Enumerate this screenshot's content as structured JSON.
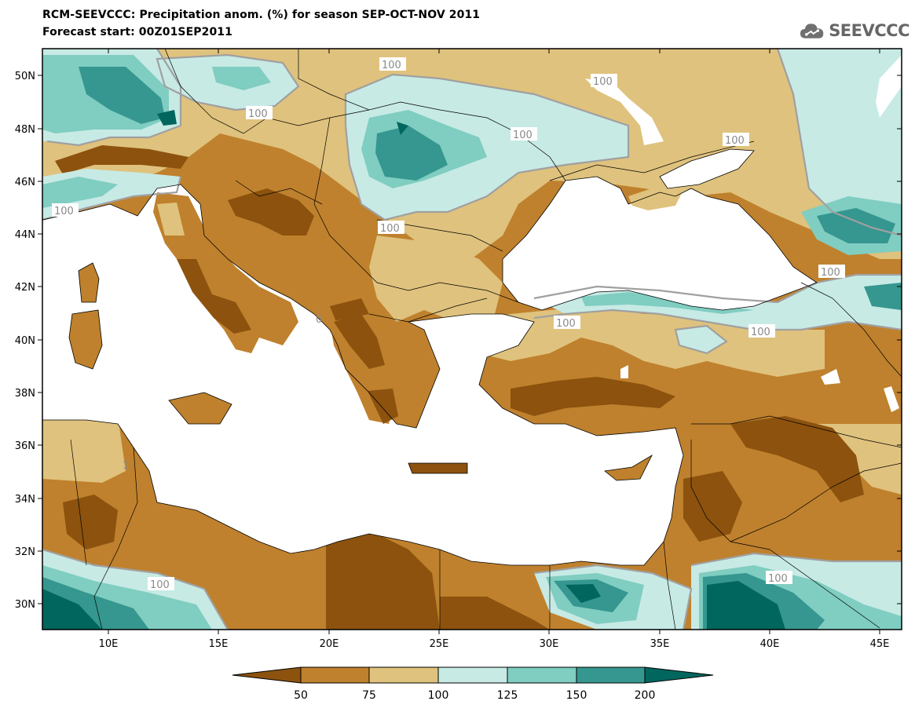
{
  "title_line1": "RCM-SEEVCCC: Precipitation anom. (%) for season SEP-OCT-NOV 2011",
  "title_line2": "Forecast start: 00Z01SEP2011",
  "logo_text": "SEEVCCC",
  "map": {
    "lon_range": [
      7,
      46
    ],
    "lat_range": [
      29,
      51
    ],
    "lat_ticks": [
      "50N",
      "48N",
      "46N",
      "44N",
      "42N",
      "40N",
      "38N",
      "36N",
      "34N",
      "32N",
      "30N"
    ],
    "lon_ticks": [
      "10E",
      "15E",
      "20E",
      "25E",
      "30E",
      "35E",
      "40E",
      "45E"
    ],
    "contour_labels": [
      "100",
      "100",
      "100",
      "100",
      "100",
      "100",
      "100",
      "100",
      "100",
      "100",
      "100",
      "100",
      "0",
      "1"
    ],
    "colors": {
      "lt50": "#8c520e",
      "50_75": "#bf812d",
      "75_100": "#dfc27d",
      "100_125": "#c7eae5",
      "125_150": "#80cdc1",
      "150_200": "#35978f",
      "gt200": "#01665e",
      "sea": "#ffffff"
    }
  },
  "colorbar": {
    "labels": [
      "50",
      "75",
      "100",
      "125",
      "150",
      "200"
    ],
    "colors": [
      "#8c520e",
      "#bf812d",
      "#dfc27d",
      "#c7eae5",
      "#80cdc1",
      "#35978f",
      "#01665e"
    ]
  }
}
